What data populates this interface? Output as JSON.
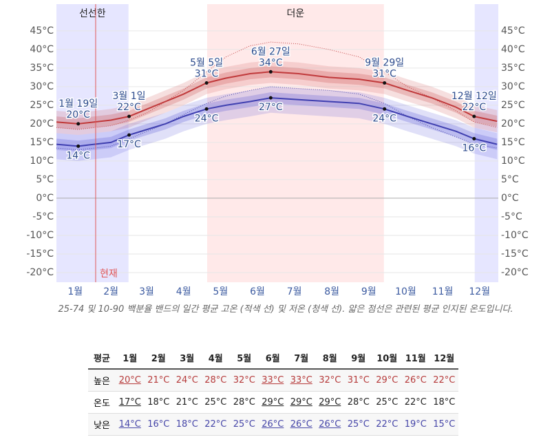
{
  "chart_data": {
    "type": "line",
    "x": [
      0,
      18,
      45,
      60,
      75,
      90,
      105,
      124,
      140,
      160,
      177,
      200,
      225,
      250,
      271,
      290,
      310,
      330,
      345,
      364
    ],
    "xlim": [
      0,
      365
    ],
    "xticks": [
      {
        "value": 15.5,
        "label": "1월"
      },
      {
        "value": 45,
        "label": "2월"
      },
      {
        "value": 74.5,
        "label": "3월"
      },
      {
        "value": 105,
        "label": "4월"
      },
      {
        "value": 135.5,
        "label": "5월"
      },
      {
        "value": 166,
        "label": "6월"
      },
      {
        "value": 196.5,
        "label": "7월"
      },
      {
        "value": 227.5,
        "label": "8월"
      },
      {
        "value": 258,
        "label": "9월"
      },
      {
        "value": 288.5,
        "label": "10월"
      },
      {
        "value": 319,
        "label": "11월"
      },
      {
        "value": 349.5,
        "label": "12월"
      }
    ],
    "ylim": [
      -22.6,
      52.2
    ],
    "yticks": [
      {
        "value": 45,
        "label": "45°C"
      },
      {
        "value": 40,
        "label": "40°C"
      },
      {
        "value": 35,
        "label": "35°C"
      },
      {
        "value": 30,
        "label": "30°C"
      },
      {
        "value": 25,
        "label": "25°C"
      },
      {
        "value": 20,
        "label": "20°C"
      },
      {
        "value": 15,
        "label": "15°C"
      },
      {
        "value": 10,
        "label": "10°C"
      },
      {
        "value": 5,
        "label": "5°C"
      },
      {
        "value": 0,
        "label": "0°C"
      },
      {
        "value": -5,
        "label": "-5°C"
      },
      {
        "value": -10,
        "label": "-10°C"
      },
      {
        "value": -15,
        "label": "-15°C"
      },
      {
        "value": -20,
        "label": "-20°C"
      }
    ],
    "grid": true,
    "regions": [
      {
        "label": "선선한",
        "start": 0,
        "end": 59.5,
        "color": "#e6e6ff"
      },
      {
        "start": 345.5,
        "end": 365,
        "color": "#e6e6ff"
      },
      {
        "label": "더운",
        "start": 124.5,
        "end": 270.5,
        "color": "#ffe9e9"
      }
    ],
    "now": {
      "x": 32.4,
      "label": "현재",
      "color": "#e05555"
    },
    "bands": [
      {
        "color": "rgba(214,110,110,0.22)",
        "lower": [
          17.5,
          17,
          18,
          19,
          21,
          23,
          25,
          28,
          29.3,
          30.5,
          31,
          30.5,
          29.5,
          29,
          28,
          26,
          24,
          21.5,
          19,
          17.7
        ],
        "upper": [
          23.5,
          23,
          24,
          25,
          27,
          29,
          31,
          34,
          35.3,
          36.5,
          37,
          36.5,
          35.5,
          35,
          34,
          32,
          30,
          27.5,
          25,
          23.7
        ]
      },
      {
        "color": "rgba(200,70,70,0.25)",
        "lower": [
          19,
          18.5,
          19.5,
          20.5,
          22.5,
          24.5,
          26.5,
          29.5,
          30.8,
          32,
          32.5,
          32,
          31,
          30.5,
          29.5,
          27.5,
          25.5,
          23,
          20.5,
          19.2
        ],
        "upper": [
          22,
          21.5,
          22.5,
          23.5,
          25.5,
          27.5,
          29.5,
          32.5,
          33.8,
          35,
          35.5,
          35,
          34,
          33.5,
          32.5,
          30.5,
          28.5,
          26,
          23.5,
          22.2
        ]
      },
      {
        "color": "rgba(100,100,220,0.2)",
        "lower": [
          10.5,
          10,
          11,
          13,
          14.5,
          16,
          18,
          20,
          21,
          22,
          23,
          22.5,
          22,
          21.5,
          20,
          18,
          16,
          14,
          12,
          10.5
        ],
        "upper": [
          17.5,
          17,
          18,
          20,
          21.5,
          23,
          25,
          27,
          28,
          29,
          30,
          29.5,
          29,
          28.5,
          27,
          25,
          23,
          21,
          19,
          17.5
        ]
      },
      {
        "color": "rgba(80,80,210,0.25)",
        "lower": [
          13,
          12.5,
          13.5,
          15.5,
          17,
          18.5,
          20.5,
          22.5,
          23.5,
          24.5,
          25.5,
          25,
          24.5,
          24,
          22.5,
          20.5,
          18.5,
          16.5,
          14.5,
          13
        ],
        "upper": [
          16,
          15.5,
          16.5,
          18.5,
          20,
          21.5,
          23.5,
          25.5,
          26.5,
          27.5,
          28.5,
          28,
          27.5,
          27,
          25.5,
          23.5,
          21.5,
          19.5,
          17.5,
          16
        ]
      }
    ],
    "series": [
      {
        "color": "#c0393b",
        "values": [
          20.5,
          20,
          21,
          22,
          24,
          26,
          28,
          31,
          32.3,
          33.5,
          34,
          33.5,
          32.5,
          32,
          31,
          29,
          27,
          24.5,
          22,
          20.7
        ]
      },
      {
        "color": "#3f3fb0",
        "values": [
          14.5,
          14,
          15,
          17,
          18.5,
          20,
          22,
          24,
          25,
          26,
          27,
          26.5,
          26,
          25.5,
          24,
          22,
          20,
          18,
          16,
          14.5
        ]
      },
      {
        "color": "#c44444",
        "dotted": true,
        "values": [
          19,
          18.5,
          19.5,
          21,
          23,
          26,
          29,
          34,
          38,
          41,
          42,
          41.5,
          40,
          38,
          34,
          30,
          27,
          23.5,
          20.5,
          19
        ]
      },
      {
        "color": "#4444aa",
        "dotted": true,
        "values": [
          13.5,
          13,
          14,
          16,
          18,
          20,
          22.5,
          25.5,
          27.5,
          29,
          30,
          29.5,
          29,
          28,
          25.5,
          22,
          19,
          16.5,
          14.5,
          13.5
        ]
      }
    ],
    "annotations": [
      {
        "x": 18,
        "label": "1월 19일",
        "high": 20,
        "high_label": "20°C",
        "low": 14,
        "low_label": "14°C"
      },
      {
        "x": 60,
        "label": "3월 1일",
        "high": 22,
        "high_label": "22°C",
        "low": 17,
        "low_label": "17°C"
      },
      {
        "x": 124,
        "label": "5월 5일",
        "high": 31,
        "high_label": "31°C",
        "low": 24,
        "low_label": "24°C"
      },
      {
        "x": 177,
        "label": "6월 27일",
        "high": 34,
        "high_label": "34°C",
        "low": 27,
        "low_label": "27°C"
      },
      {
        "x": 271,
        "label": "9월 29일",
        "high": 31,
        "high_label": "31°C",
        "low": 24,
        "low_label": "24°C"
      },
      {
        "x": 345,
        "label": "12월 12일",
        "high": 22,
        "high_label": "22°C",
        "low": 16,
        "low_label": "16°C"
      }
    ],
    "caption": "25-74 및 10-90 백분율 밴드의 일간 평균 고온 (적색 선) 및 저온 (청색 선). 얇은 점선은 관련된 평균 인지된 온도입니다."
  },
  "table": {
    "header": [
      "평균",
      "1월",
      "2월",
      "3월",
      "4월",
      "5월",
      "6월",
      "7월",
      "8월",
      "9월",
      "10월",
      "11월",
      "12월"
    ],
    "rows": [
      [
        "높은",
        "20°C",
        "21°C",
        "24°C",
        "28°C",
        "32°C",
        "33°C",
        "33°C",
        "32°C",
        "31°C",
        "29°C",
        "26°C",
        "22°C"
      ],
      [
        "온도",
        "17°C",
        "18°C",
        "21°C",
        "25°C",
        "28°C",
        "29°C",
        "29°C",
        "29°C",
        "28°C",
        "25°C",
        "22°C",
        "18°C"
      ],
      [
        "낮은",
        "14°C",
        "16°C",
        "18°C",
        "22°C",
        "25°C",
        "26°C",
        "26°C",
        "26°C",
        "25°C",
        "22°C",
        "19°C",
        "15°C"
      ]
    ]
  }
}
